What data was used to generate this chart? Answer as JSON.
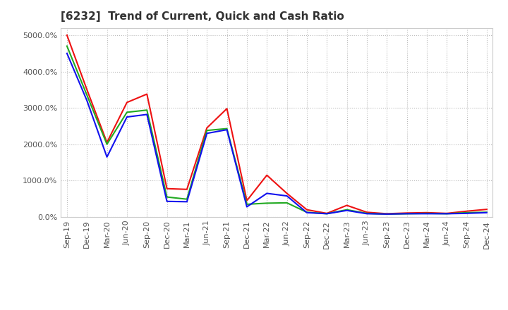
{
  "title": "[6232]  Trend of Current, Quick and Cash Ratio",
  "labels": [
    "Sep-19",
    "Dec-19",
    "Mar-20",
    "Jun-20",
    "Sep-20",
    "Dec-20",
    "Mar-21",
    "Jun-21",
    "Sep-21",
    "Dec-21",
    "Mar-22",
    "Jun-22",
    "Sep-22",
    "Dec-22",
    "Mar-23",
    "Jun-23",
    "Sep-23",
    "Dec-23",
    "Mar-24",
    "Jun-24",
    "Sep-24",
    "Dec-24"
  ],
  "current_ratio": [
    5000,
    3500,
    2050,
    3150,
    3380,
    780,
    760,
    2450,
    2980,
    450,
    1150,
    650,
    200,
    100,
    320,
    130,
    90,
    110,
    120,
    100,
    160,
    210
  ],
  "quick_ratio": [
    4700,
    3350,
    2000,
    2880,
    2940,
    550,
    490,
    2380,
    2430,
    350,
    380,
    390,
    130,
    90,
    200,
    100,
    80,
    90,
    100,
    90,
    120,
    130
  ],
  "cash_ratio": [
    4500,
    3200,
    1650,
    2750,
    2820,
    430,
    420,
    2300,
    2400,
    280,
    650,
    580,
    120,
    90,
    180,
    90,
    80,
    90,
    90,
    90,
    100,
    120
  ],
  "current_color": "#EE1111",
  "quick_color": "#22AA22",
  "cash_color": "#1111EE",
  "background_color": "#FFFFFF",
  "grid_color": "#BBBBBB",
  "ylim": [
    0,
    5200
  ],
  "yticks": [
    0,
    1000,
    2000,
    3000,
    4000,
    5000
  ],
  "ytick_labels": [
    "0.0%",
    "1000.0%",
    "2000.0%",
    "3000.0%",
    "4000.0%",
    "5000.0%"
  ],
  "title_fontsize": 11,
  "tick_fontsize": 8,
  "legend_fontsize": 9
}
